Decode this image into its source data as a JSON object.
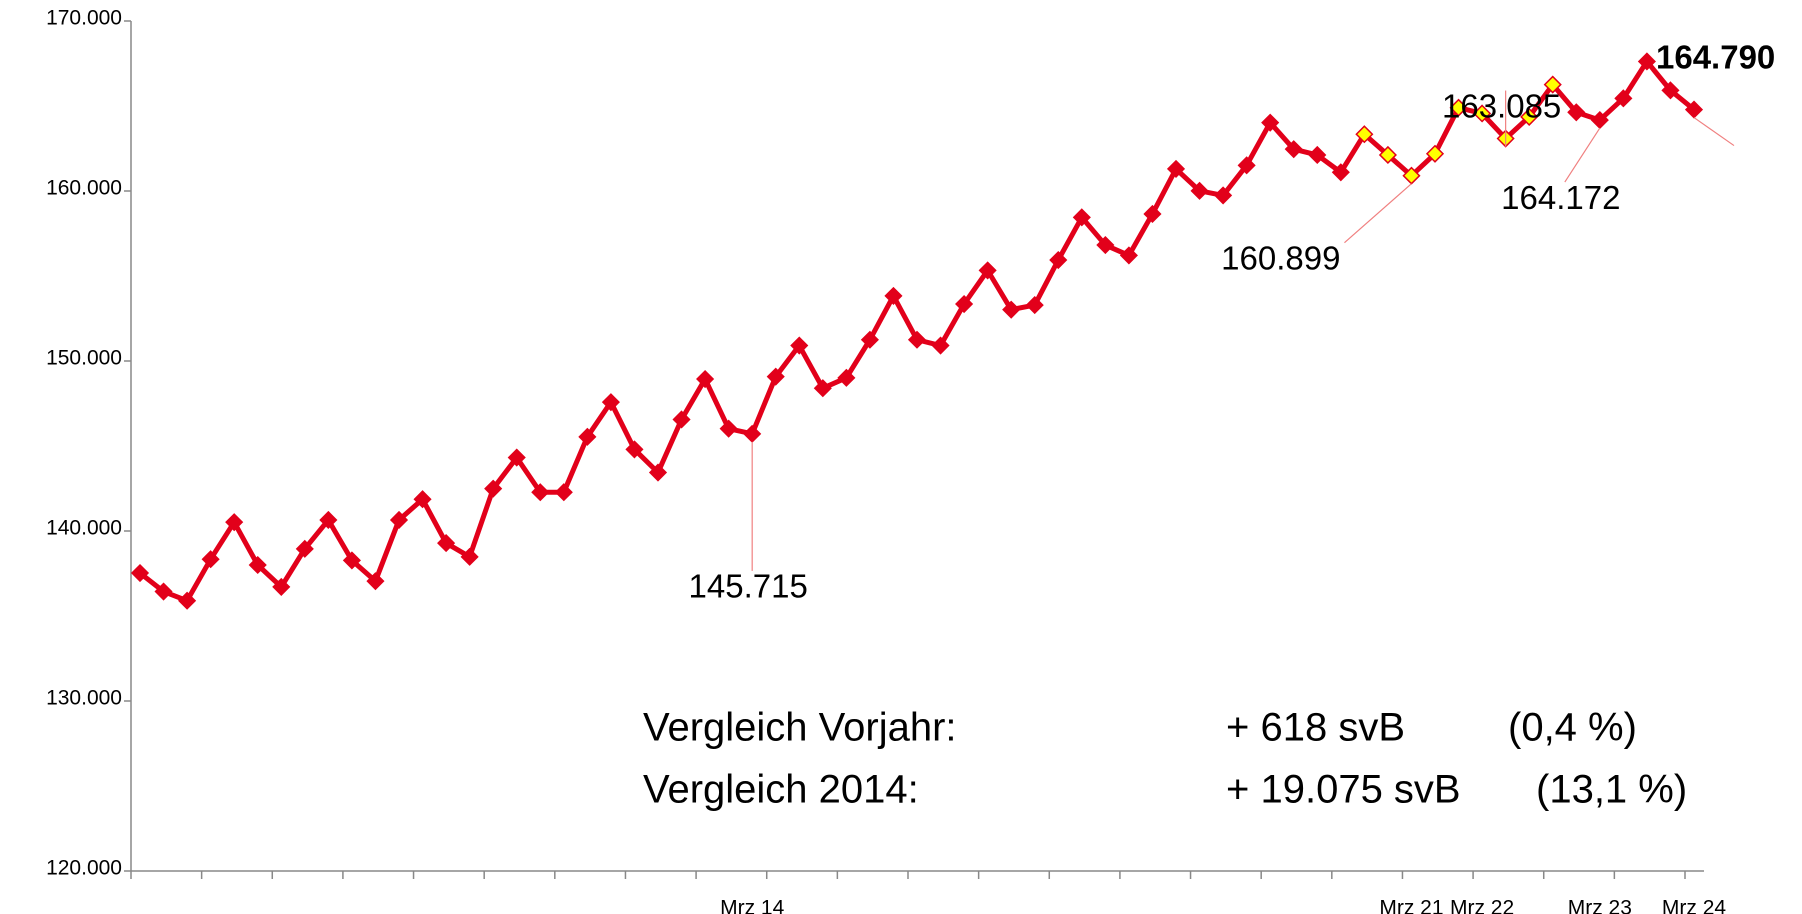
{
  "chart_data": {
    "type": "line",
    "categories": [
      null,
      null,
      null,
      null,
      null,
      null,
      null,
      null,
      null,
      null,
      null,
      null,
      null,
      null,
      null,
      null,
      null,
      null,
      null,
      null,
      null,
      null,
      null,
      null,
      null,
      null,
      "Mrz 14",
      null,
      null,
      null,
      null,
      null,
      null,
      null,
      null,
      null,
      null,
      null,
      null,
      null,
      null,
      null,
      null,
      null,
      null,
      null,
      null,
      null,
      null,
      null,
      null,
      null,
      null,
      null,
      "Mrz 21",
      null,
      null,
      "Mrz 22",
      null,
      null,
      null,
      null,
      "Mrz 23",
      null,
      null,
      null,
      "Mrz 24"
    ],
    "series": [
      {
        "color": "#e2001a",
        "values": [
          137527,
          136440,
          135900,
          138340,
          140520,
          138000,
          136710,
          138950,
          140650,
          138270,
          137050,
          140650,
          141870,
          139290,
          138480,
          142490,
          144320,
          142280,
          142280,
          145540,
          147580,
          144800,
          143440,
          146560,
          148940,
          146020,
          145715,
          149080,
          150910,
          148400,
          149010,
          151250,
          153830,
          151250,
          150910,
          153350,
          155330,
          153020,
          153290,
          155940,
          158450,
          156820,
          156210,
          158650,
          161300,
          160010,
          159740,
          161510,
          164020,
          162460,
          162120,
          161100,
          163340,
          162120,
          160899,
          162190,
          164900,
          164560,
          163085,
          164360,
          166260,
          164630,
          164172,
          165450,
          167620,
          165920,
          164790
        ],
        "value_labels": [
          null,
          null,
          null,
          null,
          null,
          null,
          null,
          null,
          null,
          null,
          null,
          null,
          null,
          null,
          null,
          null,
          null,
          null,
          null,
          null,
          null,
          null,
          null,
          null,
          null,
          null,
          "145.715",
          null,
          null,
          null,
          null,
          null,
          null,
          null,
          null,
          null,
          null,
          null,
          null,
          null,
          null,
          null,
          null,
          null,
          null,
          null,
          null,
          null,
          null,
          null,
          null,
          null,
          null,
          null,
          "160.899",
          null,
          null,
          null,
          "163.085",
          null,
          null,
          null,
          "164.172",
          null,
          null,
          null,
          "164.790"
        ]
      }
    ],
    "highlight": {
      "color": "#ffff00",
      "indices": [
        52,
        53,
        54,
        55,
        56,
        57,
        58,
        59,
        60
      ]
    },
    "ylim": [
      120000,
      170000
    ],
    "yticks": [
      {
        "value": 120000,
        "label": "120.000"
      },
      {
        "value": 130000,
        "label": "130.000"
      },
      {
        "value": 140000,
        "label": "140.000"
      },
      {
        "value": 150000,
        "label": "150.000"
      },
      {
        "value": 160000,
        "label": "160.000"
      },
      {
        "value": 170000,
        "label": "170.000"
      }
    ],
    "annotations": [
      [
        "Vergleich Vorjahr:",
        "+ 618 svB",
        "(0,4 %)"
      ],
      [
        "Vergleich 2014:",
        "+ 19.075 svB",
        "(13,1 %)"
      ]
    ]
  }
}
